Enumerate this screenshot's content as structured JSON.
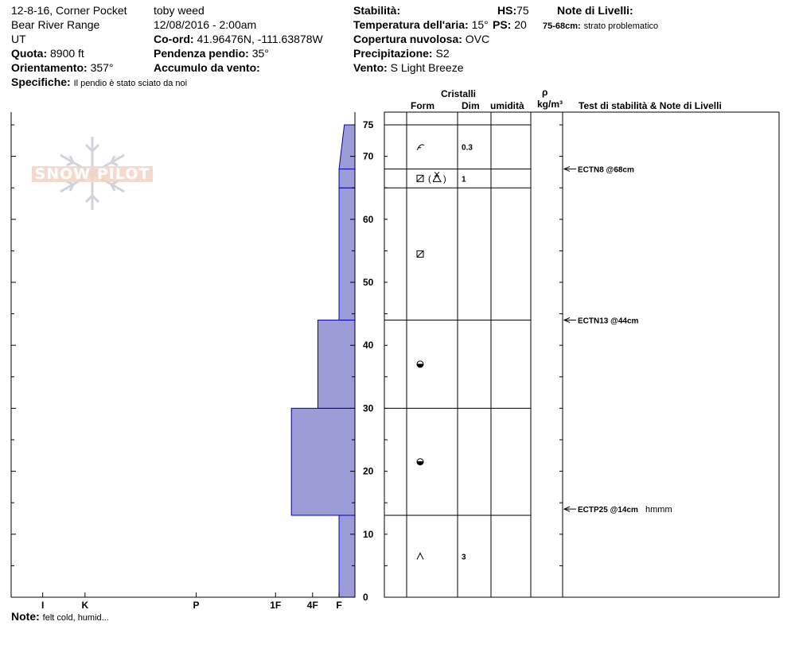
{
  "header": {
    "location": "12-8-16, Corner Pocket",
    "range": "Bear River Range",
    "state": "UT",
    "elevation_label": "Quota:",
    "elevation_value": "8900 ft",
    "aspect_label": "Orientamento:",
    "aspect_value": "357°",
    "details_label": "Specifiche:",
    "details_value": "Il pendio è stato sciato da noi",
    "observer": "toby weed",
    "datetime": "12/08/2016 - 2:00am",
    "coords_label": "Co-ord:",
    "coords_value": "41.96476N, -111.63878W",
    "slope_label": "Pendenza pendio:",
    "slope_value": "35°",
    "wind_loading_label": "Accumulo da vento:",
    "wind_loading_value": "",
    "stability_label": "Stabilità:",
    "stability_value": "",
    "air_temp_label": "Temperatura dell'aria:",
    "air_temp_value": "15°",
    "cloud_label": "Copertura nuvolosa:",
    "cloud_value": "OVC",
    "precip_label": "Precipitazione:",
    "precip_value": "S2",
    "wind_label": "Vento:",
    "wind_value": "S Light Breeze",
    "hs_label": "HS:",
    "hs_value": "75",
    "ps_label": "PS:",
    "ps_value": "20",
    "layer_notes_label": "Note di Livelli:",
    "layer_note_range": "75-68cm:",
    "layer_note_text": "strato problematico"
  },
  "table_headers": {
    "crystals": "Cristalli",
    "form": "Form",
    "size": "Dim",
    "moisture": "umidità",
    "density_symbol": "ρ",
    "density_unit": "kg/m³",
    "stability_notes": "Test di stabilità & Note di Livelli"
  },
  "footer": {
    "note_label": "Note:",
    "note_value": "felt cold, humid..."
  },
  "watermark": "SNOW PILOT",
  "colors": {
    "hardness_fill": "#9c9cd8",
    "hardness_stroke": "#0000aa"
  },
  "chart_data": {
    "type": "area",
    "ylabel": "",
    "ylim": [
      0,
      77
    ],
    "yticks": [
      0,
      10,
      20,
      30,
      40,
      50,
      60,
      70,
      75
    ],
    "hardness_scale": [
      "I",
      "K",
      "P",
      "1F",
      "4F",
      "F"
    ],
    "hardness_scale_values": [
      5.9,
      5.1,
      3.0,
      1.5,
      0.8,
      0.3
    ],
    "hardness_profile": [
      {
        "top": 13,
        "bottom": 0,
        "hardness": 0.3
      },
      {
        "top": 30,
        "bottom": 13,
        "hardness": 1.2
      },
      {
        "top": 44,
        "bottom": 30,
        "hardness": 0.7
      },
      {
        "top": 65,
        "bottom": 44,
        "hardness": 0.3
      },
      {
        "top": 68,
        "bottom": 65,
        "hardness": 0.3
      },
      {
        "top": 75,
        "bottom": 68,
        "hardness_bottom": 0.3,
        "hardness_top": 0.2
      }
    ],
    "layer_boundaries": [
      75,
      68,
      65,
      44,
      30,
      13,
      0
    ],
    "layers": [
      {
        "top": 75,
        "bottom": 68,
        "form": "precipitation-particles",
        "size": "0.3"
      },
      {
        "top": 68,
        "bottom": 65,
        "form": "faceted-rounded-with-surface-hoar",
        "size": "1"
      },
      {
        "top": 65,
        "bottom": 44,
        "form": "faceted",
        "size": ""
      },
      {
        "top": 44,
        "bottom": 30,
        "form": "rounded-faceted",
        "size": ""
      },
      {
        "top": 30,
        "bottom": 13,
        "form": "rounded-faceted",
        "size": ""
      },
      {
        "top": 13,
        "bottom": 0,
        "form": "depth-hoar",
        "size": "3"
      }
    ],
    "stability_tests": [
      {
        "depth": 68,
        "label": "ECTN8 @68cm",
        "note": ""
      },
      {
        "depth": 44,
        "label": "ECTN13 @44cm",
        "note": ""
      },
      {
        "depth": 14,
        "label": "ECTP25 @14cm",
        "note": "hmmm"
      }
    ]
  }
}
